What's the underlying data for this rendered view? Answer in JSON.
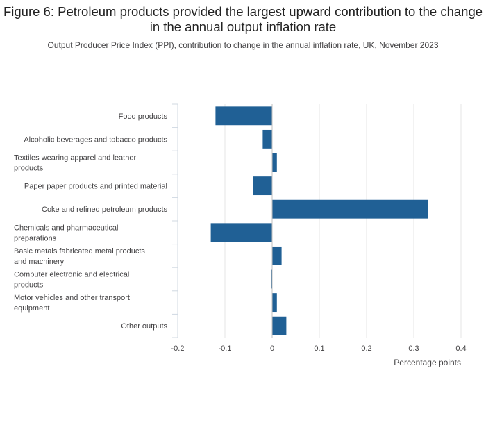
{
  "title": "Figure 6: Petroleum products provided the largest upward contribution to the change in the annual output inflation rate",
  "subtitle": "Output Producer Price Index (PPI), contribution to change in the annual inflation rate, UK, November 2023",
  "chart_data": {
    "type": "bar",
    "orientation": "horizontal",
    "title": "Figure 6: Petroleum products provided the largest upward contribution to the change in the annual output inflation rate",
    "subtitle": "Output Producer Price Index (PPI), contribution to change in the annual inflation rate, UK, November 2023",
    "xlabel": "Percentage points",
    "ylabel": "",
    "xlim": [
      -0.2,
      0.4
    ],
    "xticks": [
      -0.2,
      -0.1,
      0,
      0.1,
      0.2,
      0.3,
      0.4
    ],
    "xtick_labels": [
      "-0.2",
      "-0.1",
      "0",
      "0.1",
      "0.2",
      "0.3",
      "0.4"
    ],
    "grid": true,
    "bar_color": "#206095",
    "categories": [
      "Food products",
      "Alcoholic beverages and tobacco products",
      "Textiles wearing apparel and leather products",
      "Paper paper products and printed material",
      "Coke and refined petroleum products",
      "Chemicals and pharmaceutical preparations",
      "Basic metals fabricated metal products and machinery",
      "Computer electronic and electrical products",
      "Motor vehicles and other transport equipment",
      "Other outputs"
    ],
    "category_lines": [
      [
        "Food products"
      ],
      [
        "Alcoholic beverages and tobacco products"
      ],
      [
        "Textiles wearing apparel and leather",
        "products"
      ],
      [
        "Paper paper products and printed material"
      ],
      [
        "Coke and refined petroleum products"
      ],
      [
        "Chemicals and pharmaceutical",
        "preparations"
      ],
      [
        "Basic metals fabricated metal products",
        "and machinery"
      ],
      [
        "Computer electronic and electrical",
        "products"
      ],
      [
        "Motor vehicles and other transport",
        "equipment"
      ],
      [
        "Other outputs"
      ]
    ],
    "values": [
      -0.12,
      -0.02,
      0.01,
      -0.04,
      0.33,
      -0.13,
      0.02,
      -0.002,
      0.01,
      0.03
    ]
  }
}
